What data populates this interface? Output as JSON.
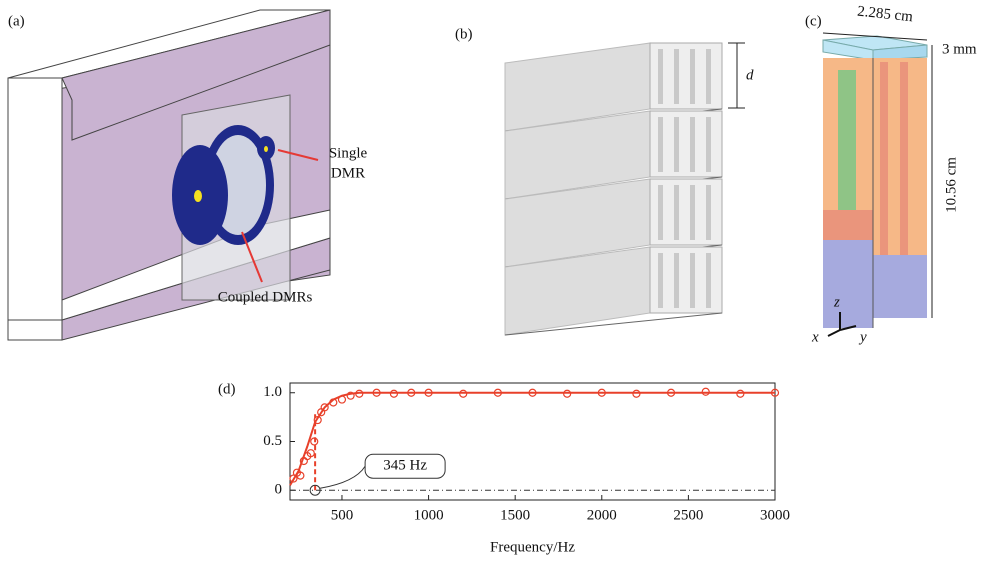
{
  "figure": {
    "a": {
      "label": "(a)",
      "single": [
        "Single",
        "DMR"
      ],
      "coupled": "Coupled DMRs"
    },
    "b": {
      "label": "(b)",
      "dim": "d"
    },
    "c": {
      "label": "(c)",
      "width": "2.285 cm",
      "thickness": "3 mm",
      "height": "10.56 cm",
      "axes": [
        "z",
        "x",
        "y"
      ]
    },
    "d": {
      "label": "(d)"
    }
  },
  "chart_data": {
    "type": "line",
    "xlabel": "Frequency/Hz",
    "xlim": [
      200,
      3000
    ],
    "ylim": [
      -0.1,
      1.1
    ],
    "xticks": [
      500,
      1000,
      1500,
      2000,
      2500,
      3000
    ],
    "yticks": [
      0,
      0.5,
      {
        "value": 1,
        "label": "1.0"
      }
    ],
    "series": [
      {
        "type": "line",
        "color": "#e8402a",
        "x": [
          200,
          250,
          300,
          345,
          400,
          450,
          500,
          550,
          600,
          800,
          1000,
          1500,
          2000,
          2500,
          3000
        ],
        "values": [
          0.05,
          0.2,
          0.45,
          0.7,
          0.85,
          0.93,
          0.97,
          0.99,
          1.0,
          1.0,
          1.0,
          1.0,
          1.0,
          1.0,
          1.0
        ]
      },
      {
        "type": "scatter",
        "color": "#e8402a",
        "x": [
          220,
          240,
          260,
          280,
          300,
          320,
          340,
          360,
          380,
          400,
          450,
          500,
          550,
          600,
          700,
          800,
          900,
          1000,
          1200,
          1400,
          1600,
          1800,
          2000,
          2200,
          2400,
          2600,
          2800,
          3000
        ],
        "values": [
          0.12,
          0.18,
          0.15,
          0.3,
          0.35,
          0.38,
          0.5,
          0.72,
          0.8,
          0.85,
          0.9,
          0.93,
          0.97,
          0.99,
          1.0,
          0.99,
          1.0,
          1.0,
          0.99,
          1.0,
          1.0,
          0.99,
          1.0,
          0.99,
          1.0,
          1.01,
          0.99,
          1.0
        ]
      }
    ],
    "annotation": {
      "text": "345 Hz",
      "x": 345,
      "y": 0,
      "top": 0.78
    }
  }
}
